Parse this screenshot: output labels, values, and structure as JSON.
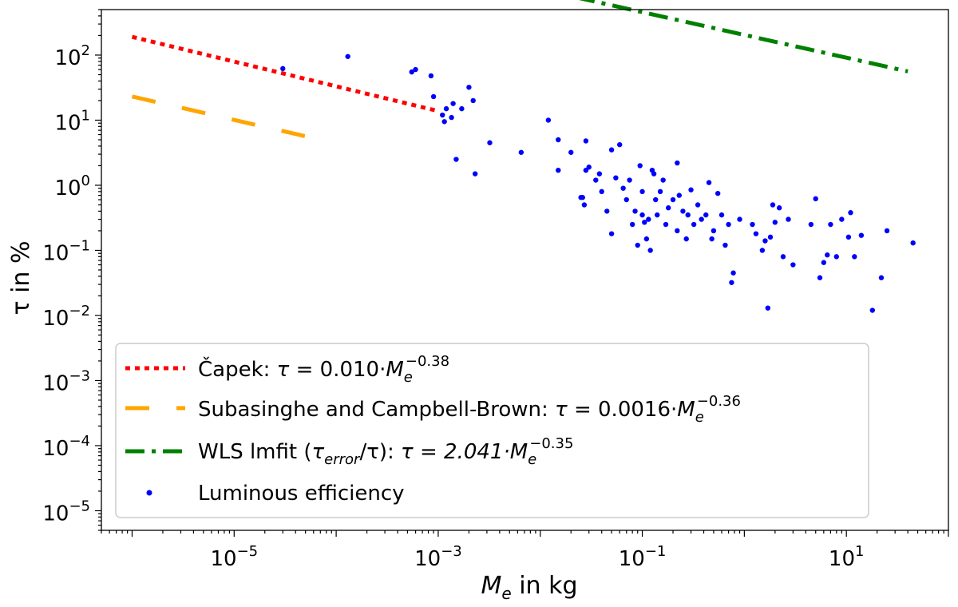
{
  "chart_data": {
    "type": "scatter",
    "title": "",
    "xlabel": {
      "main": "M",
      "sub": "e",
      "rest": " in kg"
    },
    "ylabel": "τ in %",
    "x_scale": "log",
    "y_scale": "log",
    "xlim": [
      5e-07,
      100
    ],
    "ylim": [
      5e-06,
      500
    ],
    "grid": false,
    "legend_position": "lower-left",
    "x_ticks": [
      {
        "value": 1e-05,
        "base": "10",
        "exp": "−5"
      },
      {
        "value": 0.001,
        "base": "10",
        "exp": "−3"
      },
      {
        "value": 0.1,
        "base": "10",
        "exp": "−1"
      },
      {
        "value": 10,
        "base": "10",
        "exp": "1"
      }
    ],
    "y_ticks": [
      {
        "value": 100,
        "base": "10",
        "exp": "2"
      },
      {
        "value": 10,
        "base": "10",
        "exp": "1"
      },
      {
        "value": 1,
        "base": "10",
        "exp": "0"
      },
      {
        "value": 0.1,
        "base": "10",
        "exp": "−1"
      },
      {
        "value": 0.01,
        "base": "10",
        "exp": "−2"
      },
      {
        "value": 0.001,
        "base": "10",
        "exp": "−3"
      },
      {
        "value": 0.0001,
        "base": "10",
        "exp": "−4"
      },
      {
        "value": 1e-05,
        "base": "10",
        "exp": "−5"
      }
    ],
    "fit_lines": [
      {
        "id": "capek",
        "legend": {
          "pre": "Čapek: ",
          "tau": "τ",
          "mid": " = 0.010·",
          "M": "M",
          "sub": "e",
          "sup": "−0.38",
          "post": ""
        },
        "color": "#ff0000",
        "style": "dotted",
        "x_range": [
          1e-06,
          0.001
        ],
        "coef": 0.01,
        "exponent": -0.38
      },
      {
        "id": "subasinghe",
        "legend": {
          "pre": "Subasinghe and Campbell-Brown: ",
          "tau": "τ",
          "mid": " = 0.0016·",
          "M": "M",
          "sub": "e",
          "sup": "−0.36",
          "post": ""
        },
        "color": "#ffa500",
        "style": "dashed",
        "x_range": [
          1e-06,
          6e-05
        ],
        "coef": 0.0016,
        "exponent": -0.36
      },
      {
        "id": "wls",
        "legend": {
          "pre": "WLS lmfit (",
          "tau": "τ",
          "tsub": "error",
          "tslash": "/τ): ",
          "mid": "τ = 2.041·",
          "M": "M",
          "sub": "e",
          "sup": "−0.35",
          "post": ""
        },
        "color": "#008000",
        "style": "dashdot",
        "x_range": [
          3e-05,
          40
        ],
        "coef": 2.041,
        "exponent": -0.35
      }
    ],
    "series": [
      {
        "name": "Luminous efficiency",
        "color": "#0000ff",
        "points": [
          [
            3e-05,
            62
          ],
          [
            0.00013,
            95
          ],
          [
            0.00055,
            55
          ],
          [
            0.0006,
            60
          ],
          [
            0.00085,
            48
          ],
          [
            0.0009,
            23
          ],
          [
            0.0011,
            12
          ],
          [
            0.00115,
            9.5
          ],
          [
            0.0012,
            15
          ],
          [
            0.00135,
            11
          ],
          [
            0.0014,
            18
          ],
          [
            0.0017,
            15
          ],
          [
            0.002,
            32
          ],
          [
            0.0022,
            20
          ],
          [
            0.0015,
            2.5
          ],
          [
            0.0023,
            1.5
          ],
          [
            0.0032,
            4.5
          ],
          [
            0.0065,
            3.2
          ],
          [
            0.012,
            10
          ],
          [
            0.015,
            5
          ],
          [
            0.015,
            1.7
          ],
          [
            0.02,
            3.2
          ],
          [
            0.025,
            0.65
          ],
          [
            0.026,
            0.65
          ],
          [
            0.027,
            0.5
          ],
          [
            0.028,
            4.8
          ],
          [
            0.028,
            1.7
          ],
          [
            0.03,
            1.9
          ],
          [
            0.035,
            1.2
          ],
          [
            0.038,
            1.5
          ],
          [
            0.04,
            0.8
          ],
          [
            0.045,
            0.4
          ],
          [
            0.05,
            3.5
          ],
          [
            0.05,
            0.18
          ],
          [
            0.055,
            1.3
          ],
          [
            0.06,
            4.2
          ],
          [
            0.065,
            0.9
          ],
          [
            0.07,
            0.6
          ],
          [
            0.075,
            1.2
          ],
          [
            0.08,
            0.25
          ],
          [
            0.085,
            0.4
          ],
          [
            0.09,
            0.12
          ],
          [
            0.095,
            2.0
          ],
          [
            0.1,
            0.8
          ],
          [
            0.1,
            0.35
          ],
          [
            0.105,
            0.27
          ],
          [
            0.11,
            0.15
          ],
          [
            0.115,
            0.3
          ],
          [
            0.12,
            0.1
          ],
          [
            0.125,
            1.7
          ],
          [
            0.13,
            1.5
          ],
          [
            0.135,
            0.6
          ],
          [
            0.14,
            0.35
          ],
          [
            0.15,
            0.8
          ],
          [
            0.16,
            1.2
          ],
          [
            0.17,
            0.25
          ],
          [
            0.18,
            0.45
          ],
          [
            0.2,
            0.6
          ],
          [
            0.22,
            2.2
          ],
          [
            0.22,
            0.2
          ],
          [
            0.23,
            0.7
          ],
          [
            0.25,
            0.4
          ],
          [
            0.27,
            0.15
          ],
          [
            0.28,
            0.35
          ],
          [
            0.3,
            0.85
          ],
          [
            0.32,
            0.25
          ],
          [
            0.35,
            0.5
          ],
          [
            0.38,
            0.3
          ],
          [
            0.42,
            0.35
          ],
          [
            0.45,
            1.1
          ],
          [
            0.48,
            0.15
          ],
          [
            0.5,
            0.2
          ],
          [
            0.55,
            0.75
          ],
          [
            0.6,
            0.35
          ],
          [
            0.65,
            0.12
          ],
          [
            0.7,
            0.25
          ],
          [
            0.75,
            0.032
          ],
          [
            0.78,
            0.045
          ],
          [
            0.9,
            0.3
          ],
          [
            1.2,
            0.25
          ],
          [
            1.3,
            0.18
          ],
          [
            1.5,
            0.1
          ],
          [
            1.6,
            0.14
          ],
          [
            1.7,
            0.013
          ],
          [
            1.8,
            0.16
          ],
          [
            1.9,
            0.5
          ],
          [
            2.0,
            0.27
          ],
          [
            2.2,
            0.45
          ],
          [
            2.4,
            0.08
          ],
          [
            2.7,
            0.3
          ],
          [
            3.0,
            0.06
          ],
          [
            4.5,
            0.25
          ],
          [
            5.0,
            0.62
          ],
          [
            5.5,
            0.038
          ],
          [
            6.0,
            0.065
          ],
          [
            6.5,
            0.085
          ],
          [
            7.0,
            0.25
          ],
          [
            8.0,
            0.08
          ],
          [
            9.0,
            0.3
          ],
          [
            10.5,
            0.16
          ],
          [
            11.0,
            0.38
          ],
          [
            12.0,
            0.08
          ],
          [
            14.0,
            0.17
          ],
          [
            18.0,
            0.012
          ],
          [
            22.0,
            0.038
          ],
          [
            25.0,
            0.2
          ],
          [
            45.0,
            0.13
          ]
        ]
      }
    ]
  }
}
